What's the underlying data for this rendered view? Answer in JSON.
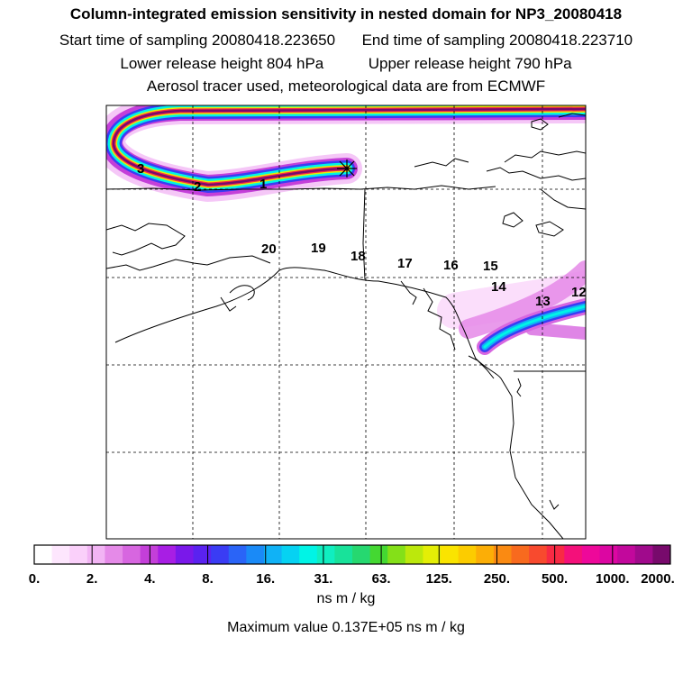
{
  "header": {
    "title": "Column-integrated emission sensitivity in nested domain for NP3_20080418",
    "start_label": "Start time of sampling 20080418.223650",
    "end_label": "End time of sampling 20080418.223710",
    "lower_label": "Lower release height  804 hPa",
    "upper_label": "Upper release height  790 hPa",
    "info": "Aerosol tracer used, meteorological data are from ECMWF"
  },
  "map": {
    "day_labels": [
      "3",
      "2",
      "1",
      "20",
      "19",
      "18",
      "17",
      "16",
      "15",
      "14",
      "13",
      "12"
    ],
    "release_marker": "release-point-star-icon"
  },
  "legend": {
    "tick_labels": [
      "0.",
      "2.",
      "4.",
      "8.",
      "16.",
      "31.",
      "63.",
      "125.",
      "250.",
      "500.",
      "1000.",
      "2000."
    ],
    "colors": [
      "#ffffff",
      "#fde6fd",
      "#fad0fa",
      "#f2b4f4",
      "#e58ae8",
      "#d766e0",
      "#c43fd9",
      "#a81ee4",
      "#7a18ea",
      "#5a22f0",
      "#3a3cf4",
      "#2a64f7",
      "#1a8af7",
      "#10b2f6",
      "#06d2f2",
      "#00f4e6",
      "#10eec0",
      "#18e29a",
      "#26d870",
      "#44d832",
      "#84e018",
      "#bce80c",
      "#e4ee06",
      "#fae400",
      "#fccc00",
      "#fcae06",
      "#fa8a12",
      "#f86a1e",
      "#f84a2e",
      "#f82a44",
      "#f4107a",
      "#ee089a",
      "#dc06a2",
      "#c2089c",
      "#a00a8c",
      "#780a6c"
    ],
    "unit": "ns m / kg",
    "max_value": "Maximum value  0.137E+05 ns m / kg"
  }
}
